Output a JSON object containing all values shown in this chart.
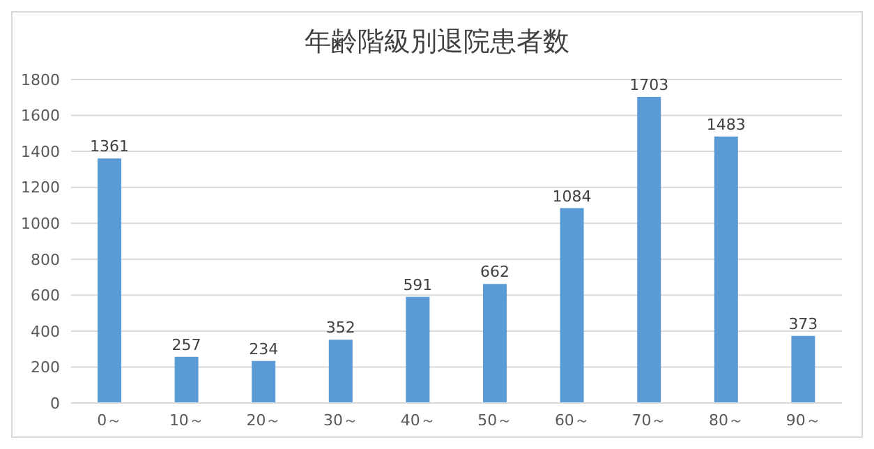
{
  "chart_data": {
    "type": "bar",
    "title": "年齢階級別退院患者数",
    "categories": [
      "0～",
      "10～",
      "20～",
      "30～",
      "40～",
      "50～",
      "60～",
      "70～",
      "80～",
      "90～"
    ],
    "values": [
      1361,
      257,
      234,
      352,
      591,
      662,
      1084,
      1703,
      1483,
      373
    ],
    "color": "#5b9bd5",
    "ylim": [
      0,
      1800
    ],
    "yticks": [
      0,
      200,
      400,
      600,
      800,
      1000,
      1200,
      1400,
      1600,
      1800
    ],
    "grid": "y",
    "data_labels": true
  }
}
